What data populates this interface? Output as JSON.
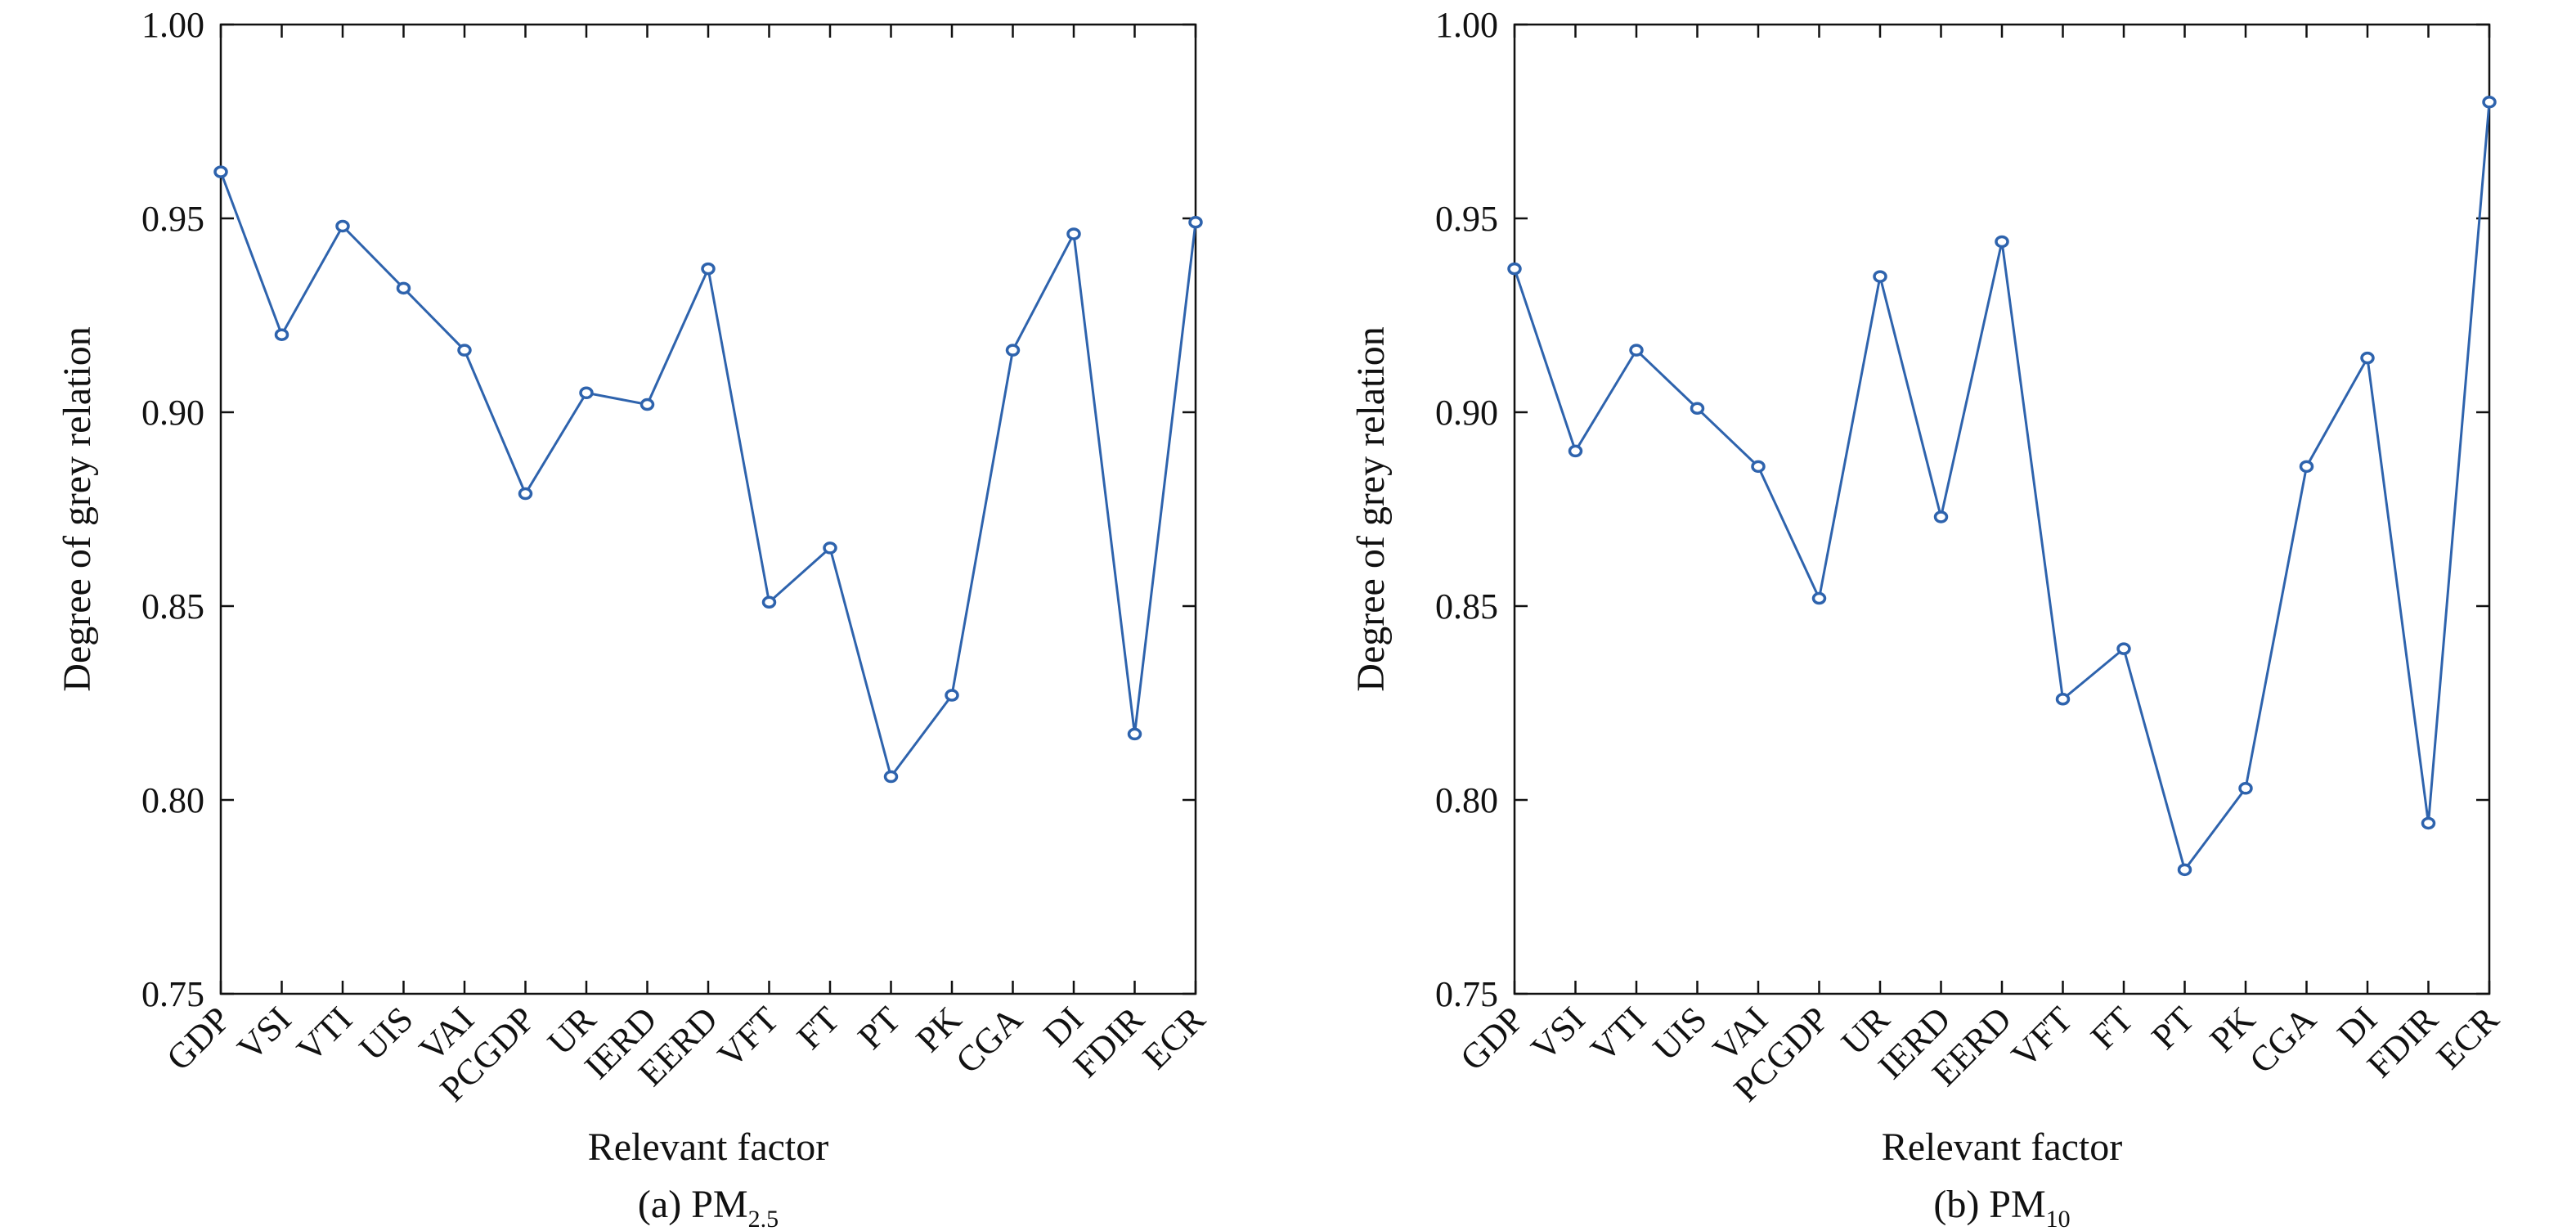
{
  "chart_data": [
    {
      "type": "line",
      "caption": {
        "prefix": "(a) PM",
        "subscript": "2.5"
      },
      "xlabel": "Relevant factor",
      "ylabel": "Degree of grey relation",
      "ylim": [
        0.75,
        1.0
      ],
      "yticks": [
        "0.75",
        "0.80",
        "0.85",
        "0.90",
        "0.95",
        "1.00"
      ],
      "grid": false,
      "categories": [
        "GDP",
        "VSI",
        "VTI",
        "UIS",
        "VAI",
        "PCGDP",
        "UR",
        "IERD",
        "EERD",
        "VFT",
        "FT",
        "PT",
        "PK",
        "CGA",
        "DI",
        "FDIR",
        "ECR"
      ],
      "values": [
        0.962,
        0.92,
        0.948,
        0.932,
        0.916,
        0.879,
        0.905,
        0.902,
        0.937,
        0.851,
        0.865,
        0.806,
        0.827,
        0.916,
        0.946,
        0.817,
        0.949
      ],
      "color": "#2e63ad"
    },
    {
      "type": "line",
      "caption": {
        "prefix": "(b) PM",
        "subscript": "10"
      },
      "xlabel": "Relevant factor",
      "ylabel": "Degree of grey relation",
      "ylim": [
        0.75,
        1.0
      ],
      "yticks": [
        "0.75",
        "0.80",
        "0.85",
        "0.90",
        "0.95",
        "1.00"
      ],
      "grid": false,
      "categories": [
        "GDP",
        "VSI",
        "VTI",
        "UIS",
        "VAI",
        "PCGDP",
        "UR",
        "IERD",
        "EERD",
        "VFT",
        "FT",
        "PT",
        "PK",
        "CGA",
        "DI",
        "FDIR",
        "ECR"
      ],
      "values": [
        0.937,
        0.89,
        0.916,
        0.901,
        0.886,
        0.852,
        0.935,
        0.873,
        0.944,
        0.826,
        0.839,
        0.782,
        0.803,
        0.886,
        0.914,
        0.794,
        0.98
      ],
      "color": "#2e63ad"
    }
  ]
}
